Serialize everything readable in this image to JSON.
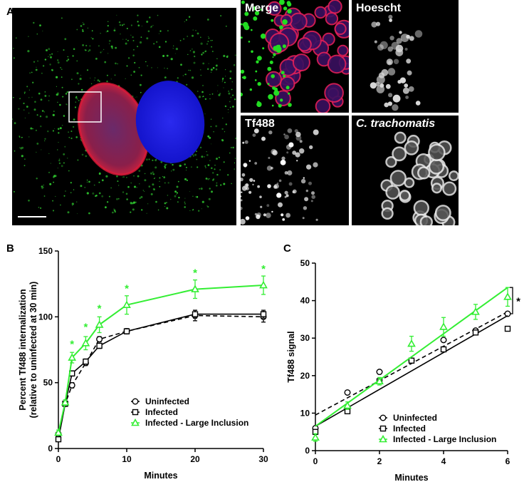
{
  "panels": {
    "a": "A",
    "b": "B",
    "c": "C"
  },
  "micrographs": {
    "merge": "Merge",
    "hoescht": "Hoescht",
    "tf488": "Tf488",
    "ctrachomatis": "C. trachomatis"
  },
  "colors": {
    "uninfected": "#000000",
    "infected": "#000000",
    "large_inclusion": "#33ee33",
    "significance": "#33ee33"
  },
  "chart_data": [
    {
      "id": "B",
      "type": "line",
      "xlabel": "Minutes",
      "ylabel": "Percent Tf488 internalization",
      "ylabel2": "(relative to uninfected at 30 min)",
      "xlim": [
        0,
        30
      ],
      "ylim": [
        0,
        150
      ],
      "x_ticks": [
        0,
        10,
        20,
        30
      ],
      "y_ticks": [
        0,
        50,
        100,
        150
      ],
      "legend_position": "bottom-right",
      "series": [
        {
          "name": "Uninfected",
          "marker": "circle",
          "line": "dashed",
          "x": [
            0,
            1,
            2,
            4,
            6,
            10,
            20,
            30
          ],
          "y": [
            11,
            34,
            48,
            65,
            83,
            89,
            101,
            100
          ],
          "err": [
            1,
            2,
            2,
            2,
            2,
            2,
            4,
            4
          ]
        },
        {
          "name": "Infected",
          "marker": "square",
          "line": "solid",
          "x": [
            0,
            1,
            2,
            4,
            6,
            10,
            20,
            30
          ],
          "y": [
            7,
            34,
            57,
            66,
            78,
            89,
            102,
            102
          ],
          "err": [
            1,
            2,
            2,
            2,
            2,
            2,
            3,
            3
          ]
        },
        {
          "name": "Infected - Large Inclusion",
          "marker": "triangle",
          "line": "solid",
          "x": [
            0,
            1,
            2,
            4,
            6,
            10,
            20,
            30
          ],
          "y": [
            12,
            35,
            69,
            80,
            94,
            109,
            121,
            124
          ],
          "err": [
            2,
            2,
            4,
            5,
            6,
            7,
            7,
            7
          ]
        }
      ],
      "annotations": [
        {
          "text": "*",
          "x": 2,
          "y": 80
        },
        {
          "text": "*",
          "x": 4,
          "y": 93
        },
        {
          "text": "*",
          "x": 6,
          "y": 107
        },
        {
          "text": "*",
          "x": 10,
          "y": 122
        },
        {
          "text": "*",
          "x": 20,
          "y": 134
        },
        {
          "text": "*",
          "x": 30,
          "y": 137
        }
      ]
    },
    {
      "id": "C",
      "type": "scatter",
      "xlabel": "Minutes",
      "ylabel": "Tf488 signal",
      "xlim": [
        0,
        6
      ],
      "ylim": [
        0,
        50
      ],
      "x_ticks": [
        0,
        2,
        4,
        6
      ],
      "y_ticks": [
        0,
        10,
        20,
        30,
        40,
        50
      ],
      "legend_position": "bottom-right",
      "series": [
        {
          "name": "Uninfected",
          "marker": "circle",
          "fit": "dashed",
          "x": [
            0,
            1,
            2,
            3,
            4,
            5,
            6
          ],
          "y": [
            6,
            15.5,
            21,
            24,
            29.5,
            32,
            36.5
          ],
          "err": [
            0.5,
            0.5,
            0.5,
            0.5,
            0.5,
            0.5,
            0.5
          ],
          "fit_line": [
            [
              0,
              9.5
            ],
            [
              6,
              37
            ]
          ]
        },
        {
          "name": "Infected",
          "marker": "square",
          "fit": "solid",
          "x": [
            0,
            1,
            2,
            3,
            4,
            5,
            6
          ],
          "y": [
            5,
            10.5,
            18.5,
            24,
            27,
            31.5,
            32.5
          ],
          "err": [
            0.5,
            0.5,
            0.5,
            0.5,
            0.5,
            0.5,
            0.5
          ],
          "fit_line": [
            [
              0,
              6.5
            ],
            [
              6,
              36
            ]
          ]
        },
        {
          "name": "Infected - Large Inclusion",
          "marker": "triangle",
          "fit": "solid",
          "x": [
            0,
            1,
            2,
            3,
            4,
            5,
            6
          ],
          "y": [
            3.5,
            12,
            18.5,
            28.5,
            33,
            37,
            41
          ],
          "err": [
            1,
            1,
            1,
            2,
            2.5,
            2,
            2.5
          ],
          "fit_line": [
            [
              0,
              6.5
            ],
            [
              6,
              43.5
            ]
          ]
        }
      ],
      "annotations": [
        {
          "text": "*"
        }
      ]
    }
  ]
}
